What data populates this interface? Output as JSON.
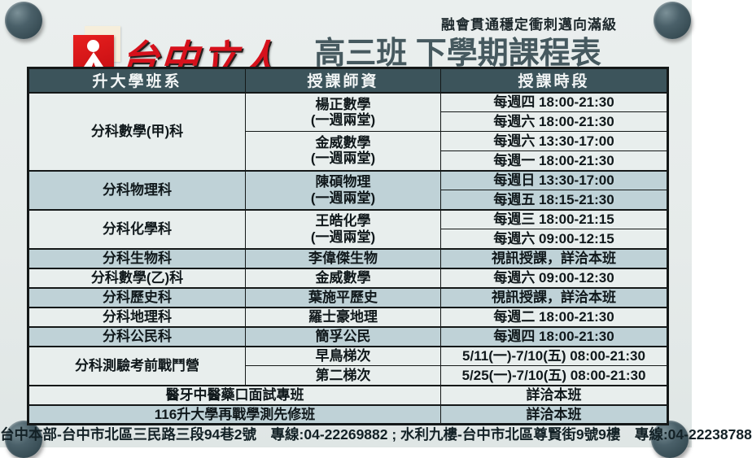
{
  "page": {
    "bg_color": "#e6ebea",
    "pin_color": "#3a4f57",
    "accent_red": "#d6111c",
    "title_color": "#46595f",
    "table_header_bg": "#3c545b",
    "row_light": "#e8eeed",
    "row_blue": "#bfd2d7"
  },
  "header": {
    "logo_text": "台中立人",
    "slogan": "融會貫通穩定衝刺邁向滿級",
    "title": "高三班 下學期課程表"
  },
  "icons": {
    "corner_pins": "pushpin-icon",
    "logo_mark": "liren-person-icon"
  },
  "table": {
    "columns": [
      "升大學班系",
      "授課師資",
      "授課時段"
    ],
    "rows": [
      {
        "shade": "light",
        "gs": true,
        "cells": [
          {
            "t": "分科數學(甲)科",
            "rs": 4
          },
          {
            "t": "楊正數學\n(一週兩堂)",
            "rs": 2
          },
          {
            "t": "每週四 18:00-21:30"
          }
        ]
      },
      {
        "shade": "light",
        "gs": false,
        "cells": [
          {
            "t": "每週六 18:00-21:30"
          }
        ]
      },
      {
        "shade": "light",
        "gs": false,
        "cells": [
          {
            "t": "金威數學\n(一週兩堂)",
            "rs": 2
          },
          {
            "t": "每週六 13:30-17:00"
          }
        ]
      },
      {
        "shade": "light",
        "gs": false,
        "cells": [
          {
            "t": "每週一 18:00-21:30"
          }
        ]
      },
      {
        "shade": "blue",
        "gs": true,
        "cells": [
          {
            "t": "分科物理科",
            "rs": 2
          },
          {
            "t": "陳碩物理\n(一週兩堂)",
            "rs": 2
          },
          {
            "t": "每週日 13:30-17:00"
          }
        ]
      },
      {
        "shade": "blue",
        "gs": false,
        "cells": [
          {
            "t": "每週五 18:15-21:30"
          }
        ]
      },
      {
        "shade": "light",
        "gs": true,
        "cells": [
          {
            "t": "分科化學科",
            "rs": 2
          },
          {
            "t": "王皓化學\n(一週兩堂)",
            "rs": 2
          },
          {
            "t": "每週三 18:00-21:15"
          }
        ]
      },
      {
        "shade": "light",
        "gs": false,
        "cells": [
          {
            "t": "每週六 09:00-12:15"
          }
        ]
      },
      {
        "shade": "blue",
        "gs": true,
        "cells": [
          {
            "t": "分科生物科"
          },
          {
            "t": "李偉傑生物"
          },
          {
            "t": "視訊授課，詳洽本班"
          }
        ]
      },
      {
        "shade": "light",
        "gs": true,
        "cells": [
          {
            "t": "分科數學(乙)科"
          },
          {
            "t": "金威數學"
          },
          {
            "t": "每週六 09:00-12:30"
          }
        ]
      },
      {
        "shade": "blue",
        "gs": true,
        "cells": [
          {
            "t": "分科歷史科"
          },
          {
            "t": "葉施平歷史"
          },
          {
            "t": "視訊授課，詳洽本班"
          }
        ]
      },
      {
        "shade": "light",
        "gs": true,
        "cells": [
          {
            "t": "分科地理科"
          },
          {
            "t": "羅士豪地理"
          },
          {
            "t": "每週二 18:00-21:30"
          }
        ]
      },
      {
        "shade": "blue",
        "gs": true,
        "cells": [
          {
            "t": "分科公民科"
          },
          {
            "t": "簡孚公民"
          },
          {
            "t": "每週四 18:00-21:30"
          }
        ]
      },
      {
        "shade": "light",
        "gs": true,
        "cells": [
          {
            "t": "分科測驗考前戰鬥營",
            "rs": 2
          },
          {
            "t": "早鳥梯次"
          },
          {
            "t": "5/11(一)-7/10(五) 08:00-21:30"
          }
        ]
      },
      {
        "shade": "light",
        "gs": false,
        "cells": [
          {
            "t": "第二梯次"
          },
          {
            "t": "5/25(一)-7/10(五) 08:00-21:30"
          }
        ]
      },
      {
        "shade": "light",
        "gs": true,
        "cells": [
          {
            "t": "醫牙中醫藥口面試專班",
            "cs": 2
          },
          {
            "t": "詳洽本班"
          }
        ]
      },
      {
        "shade": "blue",
        "gs": true,
        "cells": [
          {
            "t": "116升大學再戰學測先修班",
            "cs": 2
          },
          {
            "t": "詳洽本班"
          }
        ]
      }
    ]
  },
  "footer": {
    "text": "台中本部-台中市北區三民路三段94巷2號　專線:04-22269882 ; 水利九樓-台中市北區尊賢街9號9樓　專線:04-22238788"
  }
}
